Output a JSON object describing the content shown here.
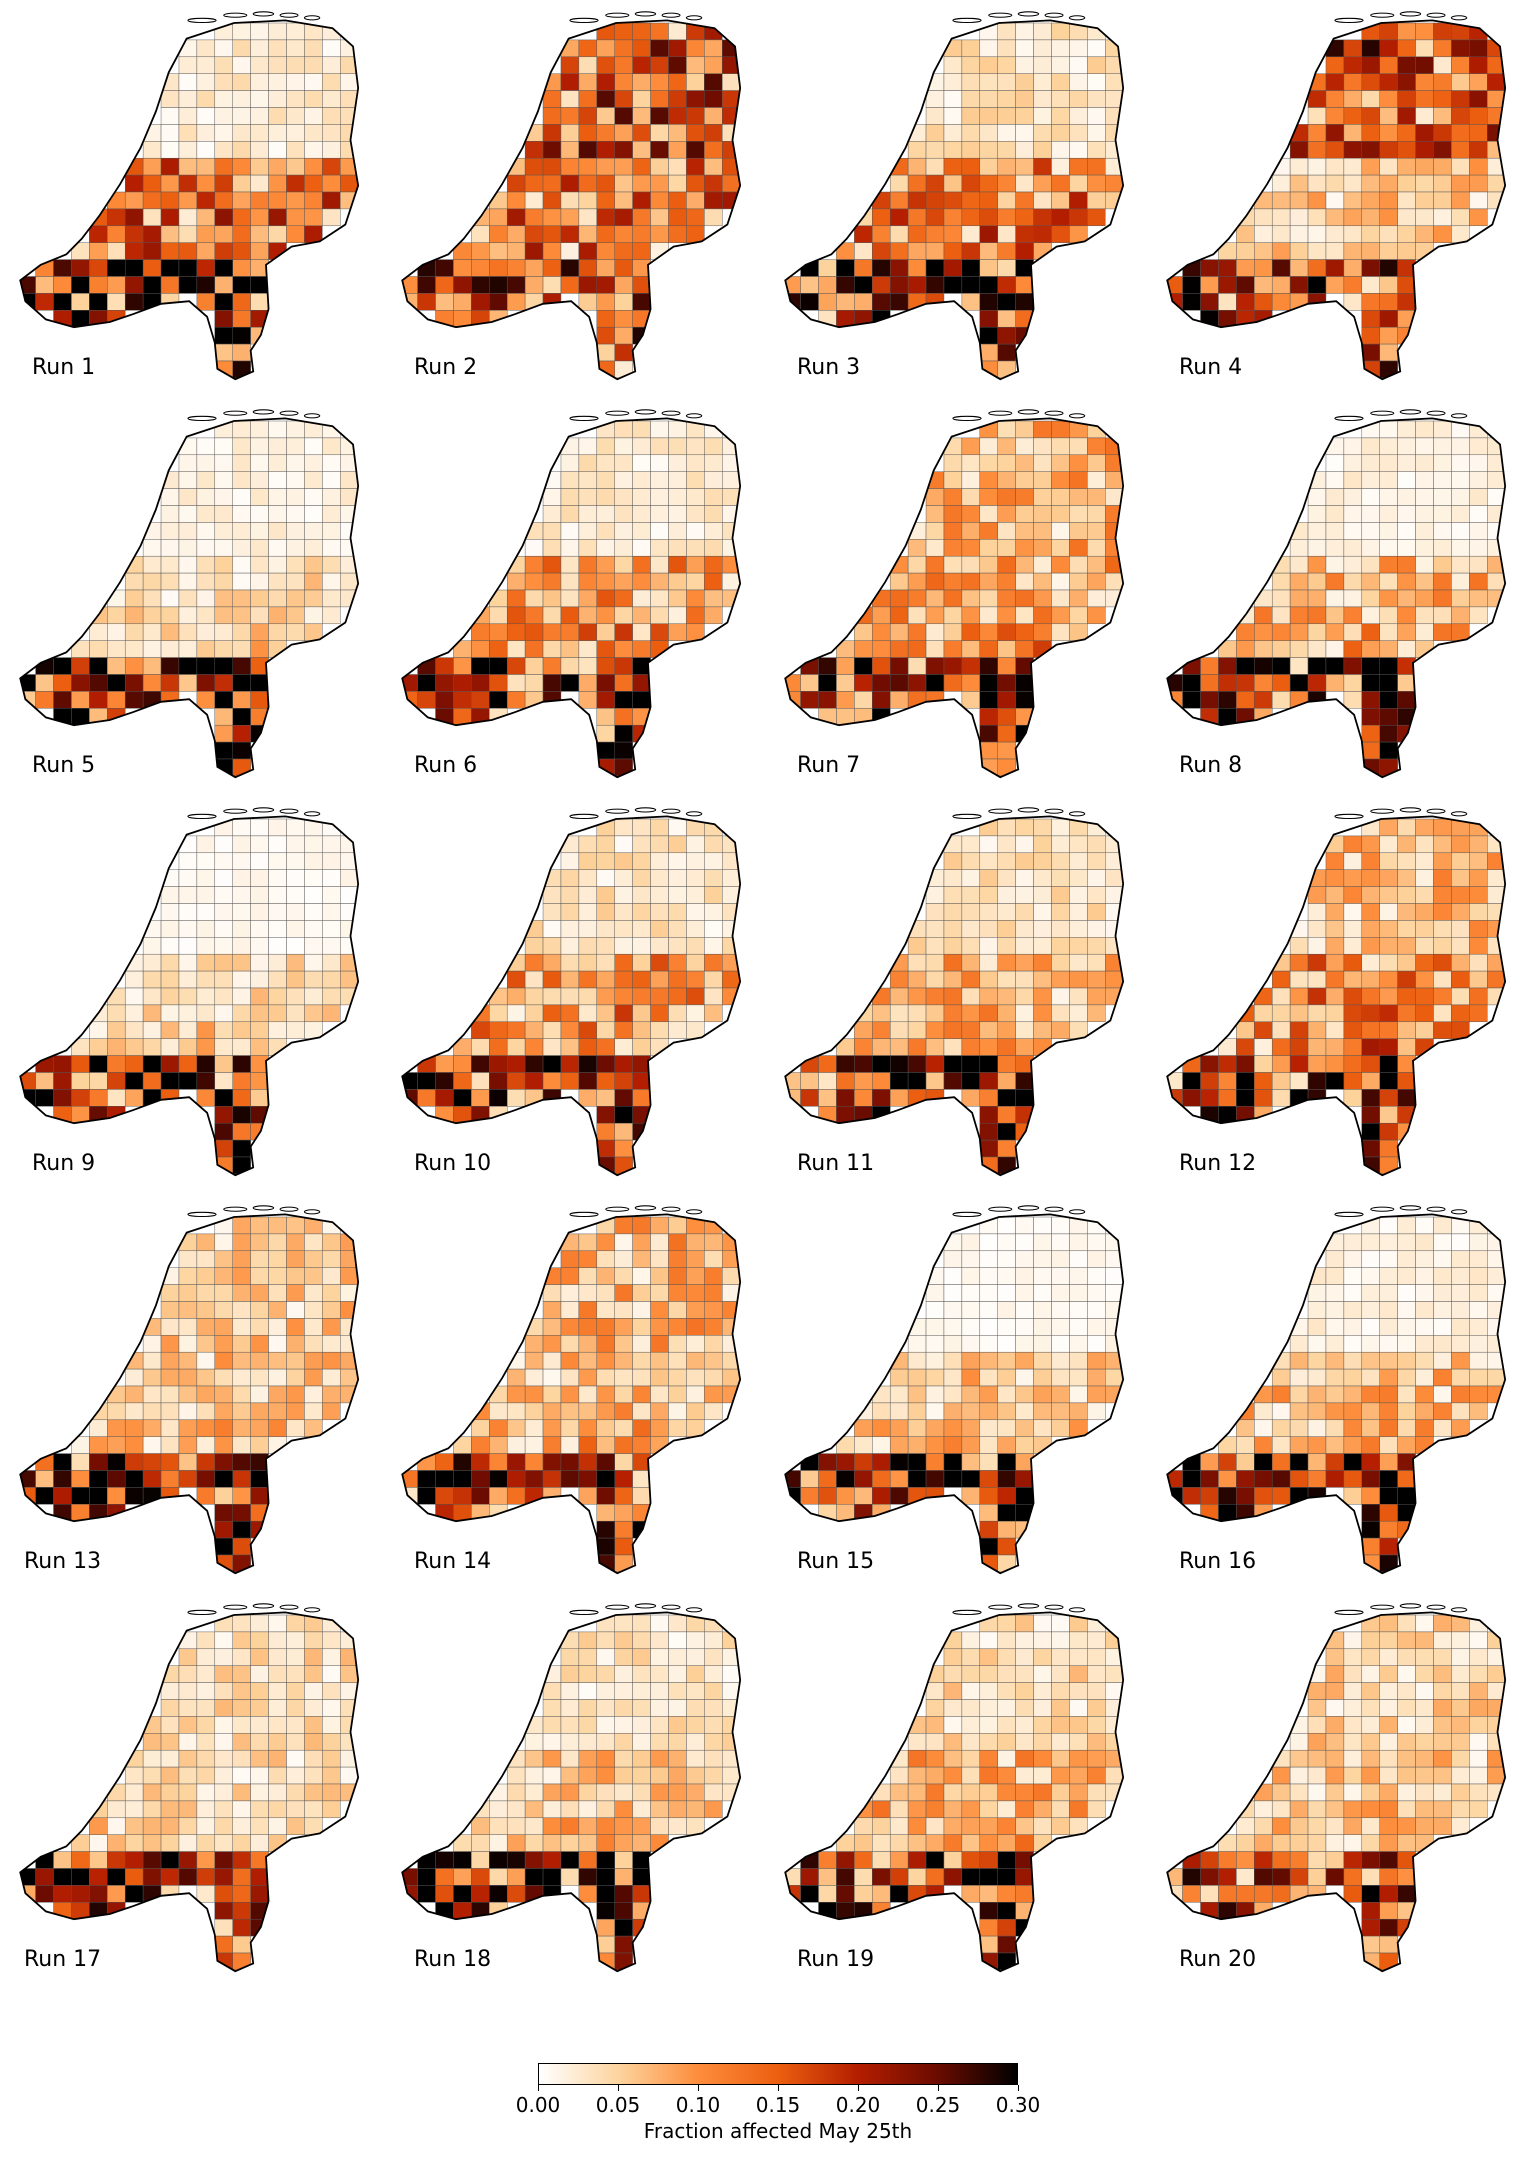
{
  "figure": {
    "runs": [
      {
        "label": "Run 1",
        "north": 0.03,
        "center": 0.16,
        "south": 0.28,
        "hotspot": "south-central"
      },
      {
        "label": "Run 2",
        "north": 0.18,
        "center": 0.15,
        "south": 0.2,
        "hotspot": "north-west"
      },
      {
        "label": "Run 3",
        "north": 0.04,
        "center": 0.14,
        "south": 0.26,
        "hotspot": "south-central"
      },
      {
        "label": "Run 4",
        "north": 0.17,
        "center": 0.07,
        "south": 0.22,
        "hotspot": "north-west"
      },
      {
        "label": "Run 5",
        "north": 0.02,
        "center": 0.05,
        "south": 0.25,
        "hotspot": "south-east"
      },
      {
        "label": "Run 6",
        "north": 0.03,
        "center": 0.11,
        "south": 0.24,
        "hotspot": "south-east"
      },
      {
        "label": "Run 7",
        "north": 0.09,
        "center": 0.1,
        "south": 0.24,
        "hotspot": "south-east"
      },
      {
        "label": "Run 8",
        "north": 0.02,
        "center": 0.09,
        "south": 0.26,
        "hotspot": "south-east"
      },
      {
        "label": "Run 9",
        "north": 0.01,
        "center": 0.05,
        "south": 0.26,
        "hotspot": "south-central"
      },
      {
        "label": "Run 10",
        "north": 0.04,
        "center": 0.12,
        "south": 0.24,
        "hotspot": "south-east"
      },
      {
        "label": "Run 11",
        "north": 0.04,
        "center": 0.09,
        "south": 0.25,
        "hotspot": "south-central"
      },
      {
        "label": "Run 12",
        "north": 0.08,
        "center": 0.13,
        "south": 0.24,
        "hotspot": "south-east"
      },
      {
        "label": "Run 13",
        "north": 0.07,
        "center": 0.07,
        "south": 0.26,
        "hotspot": "south-east"
      },
      {
        "label": "Run 14",
        "north": 0.09,
        "center": 0.08,
        "south": 0.22,
        "hotspot": "south-east"
      },
      {
        "label": "Run 15",
        "north": 0.01,
        "center": 0.07,
        "south": 0.22,
        "hotspot": "south-central"
      },
      {
        "label": "Run 16",
        "north": 0.02,
        "center": 0.08,
        "south": 0.25,
        "hotspot": "south-east"
      },
      {
        "label": "Run 17",
        "north": 0.05,
        "center": 0.05,
        "south": 0.23,
        "hotspot": "south-west"
      },
      {
        "label": "Run 18",
        "north": 0.04,
        "center": 0.07,
        "south": 0.25,
        "hotspot": "south-central"
      },
      {
        "label": "Run 19",
        "north": 0.05,
        "center": 0.09,
        "south": 0.25,
        "hotspot": "south-central"
      },
      {
        "label": "Run 20",
        "north": 0.06,
        "center": 0.07,
        "south": 0.2,
        "hotspot": "south-east"
      }
    ]
  },
  "colorbar": {
    "label": "Fraction affected May 25th",
    "ticks": [
      "0.00",
      "0.05",
      "0.10",
      "0.15",
      "0.20",
      "0.25",
      "0.30"
    ],
    "range": [
      0.0,
      0.3
    ],
    "colors": [
      "#ffffff",
      "#fdd49e",
      "#fd8d3c",
      "#ec5f10",
      "#b41e00",
      "#6b0c00",
      "#000000"
    ]
  }
}
